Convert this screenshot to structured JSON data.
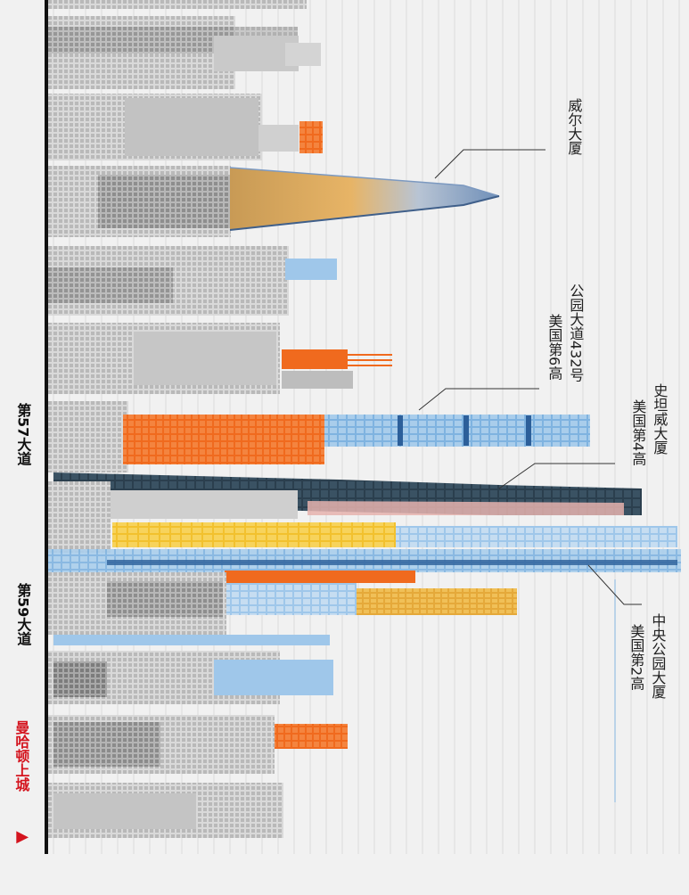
{
  "labels": {
    "wells_building": "威尔大厦",
    "park_avenue_432_name": "公园大道432号",
    "park_avenue_432_rank": "美国第6高",
    "steinway_name": "史坦威大厦",
    "steinway_rank": "美国第4高",
    "central_park_name": "中央公园大厦",
    "central_park_rank": "美国第2高"
  },
  "streets": {
    "street_57": "第57大道",
    "street_59": "第59大道",
    "uptown": "曼哈顿上城",
    "uptown_arrow": "▶"
  },
  "colors": {
    "background": "#f1f1f1",
    "gray_light": "#cfcfcf",
    "gray_mid": "#9a9a9a",
    "gray_dark": "#6e6e6e",
    "orange": "#f06a1e",
    "blue_light": "#8fc0e6",
    "blue_mid": "#5f98cd",
    "blue_dark": "#2c5f9a",
    "navy": "#2b3f4e",
    "pink": "#e6b3ae",
    "yellow": "#f2c12e",
    "gold": "#e5a93a",
    "red_label": "#d4141e"
  }
}
